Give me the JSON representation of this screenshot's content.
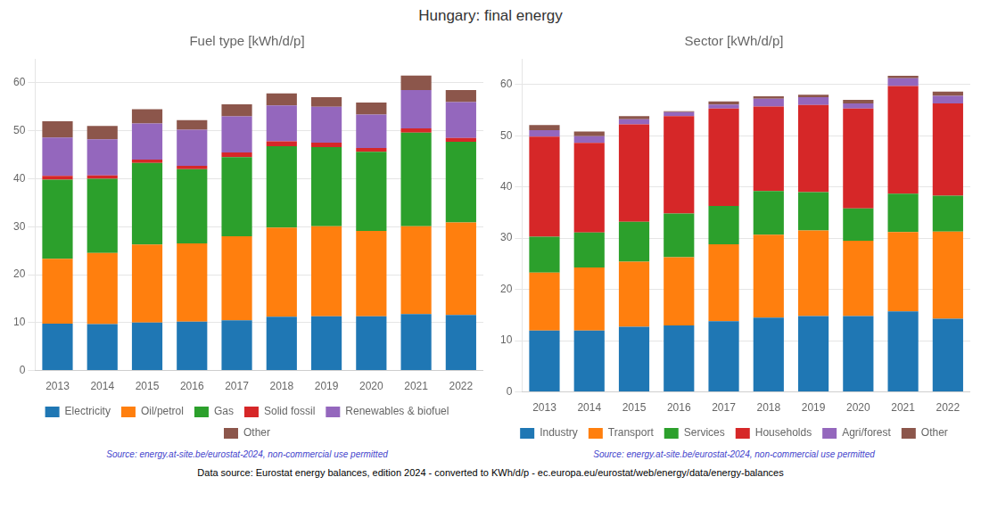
{
  "title": "Hungary: final energy",
  "annotations": [
    "Data source: Eurostat energy balances, edition 2024 - converted to KWh/d/p - ec.europa.eu/eurostat/web/energy/data/energy-balances"
  ],
  "chart_data": [
    {
      "type": "bar",
      "title": "Fuel type [kWh/d/p]",
      "stacked": true,
      "grid": true,
      "legend": "bottom",
      "annotations": [
        "Source: energy.at-site.be/eurostat-2024, non-commercial use permitted"
      ],
      "categories": [
        "2013",
        "2014",
        "2015",
        "2016",
        "2017",
        "2018",
        "2019",
        "2020",
        "2021",
        "2022"
      ],
      "series": [
        {
          "name": "Electricity",
          "color": "#1f77b4",
          "values": [
            9.8,
            9.7,
            10.0,
            10.2,
            10.5,
            11.2,
            11.3,
            11.3,
            11.8,
            11.6
          ]
        },
        {
          "name": "Oil/petrol",
          "color": "#ff7f0e",
          "values": [
            13.5,
            14.8,
            16.3,
            16.3,
            17.5,
            18.6,
            18.8,
            17.8,
            18.3,
            19.3
          ]
        },
        {
          "name": "Gas",
          "color": "#2ca02c",
          "values": [
            16.5,
            15.5,
            17.0,
            15.5,
            16.5,
            17.0,
            16.5,
            16.5,
            19.5,
            16.8
          ]
        },
        {
          "name": "Solid fossil",
          "color": "#d62728",
          "values": [
            0.8,
            0.7,
            0.7,
            0.7,
            1.0,
            1.0,
            0.9,
            0.8,
            0.9,
            0.8
          ]
        },
        {
          "name": "Renewables & biofuel",
          "color": "#9467bd",
          "values": [
            8.0,
            7.5,
            7.5,
            7.5,
            7.5,
            7.5,
            7.5,
            7.0,
            8.0,
            7.5
          ]
        },
        {
          "name": "Other",
          "color": "#8c564b",
          "values": [
            3.4,
            2.8,
            3.0,
            2.0,
            2.5,
            2.5,
            2.0,
            2.5,
            3.0,
            2.5
          ]
        }
      ],
      "ylim": [
        0,
        65
      ],
      "yticks": [
        0,
        10,
        20,
        30,
        40,
        50,
        60
      ]
    },
    {
      "type": "bar",
      "title": "Sector [kWh/d/p]",
      "stacked": true,
      "grid": true,
      "legend": "bottom",
      "annotations": [
        "Source: energy.at-site.be/eurostat-2024, non-commercial use permitted"
      ],
      "categories": [
        "2013",
        "2014",
        "2015",
        "2016",
        "2017",
        "2018",
        "2019",
        "2020",
        "2021",
        "2022"
      ],
      "series": [
        {
          "name": "Industry",
          "color": "#1f77b4",
          "values": [
            12.0,
            12.0,
            12.7,
            13.0,
            13.8,
            14.5,
            14.8,
            14.8,
            15.7,
            14.3
          ]
        },
        {
          "name": "Transport",
          "color": "#ff7f0e",
          "values": [
            11.3,
            12.3,
            12.7,
            13.3,
            15.0,
            16.2,
            16.7,
            14.7,
            15.5,
            17.0
          ]
        },
        {
          "name": "Services",
          "color": "#2ca02c",
          "values": [
            7.0,
            6.8,
            7.8,
            8.5,
            7.5,
            8.5,
            7.5,
            6.3,
            7.5,
            7.0
          ]
        },
        {
          "name": "Households",
          "color": "#d62728",
          "values": [
            19.5,
            17.5,
            19.0,
            19.0,
            19.0,
            16.5,
            17.0,
            19.5,
            21.0,
            18.0
          ]
        },
        {
          "name": "Agri/forest",
          "color": "#9467bd",
          "values": [
            1.3,
            1.3,
            1.0,
            0.8,
            0.8,
            1.5,
            1.5,
            1.0,
            1.5,
            1.5
          ]
        },
        {
          "name": "Other",
          "color": "#8c564b",
          "values": [
            1.0,
            0.9,
            0.6,
            0.2,
            0.6,
            0.5,
            0.5,
            0.7,
            0.5,
            0.8
          ]
        }
      ],
      "ylim": [
        0,
        65
      ],
      "yticks": [
        0,
        10,
        20,
        30,
        40,
        50,
        60
      ]
    }
  ]
}
